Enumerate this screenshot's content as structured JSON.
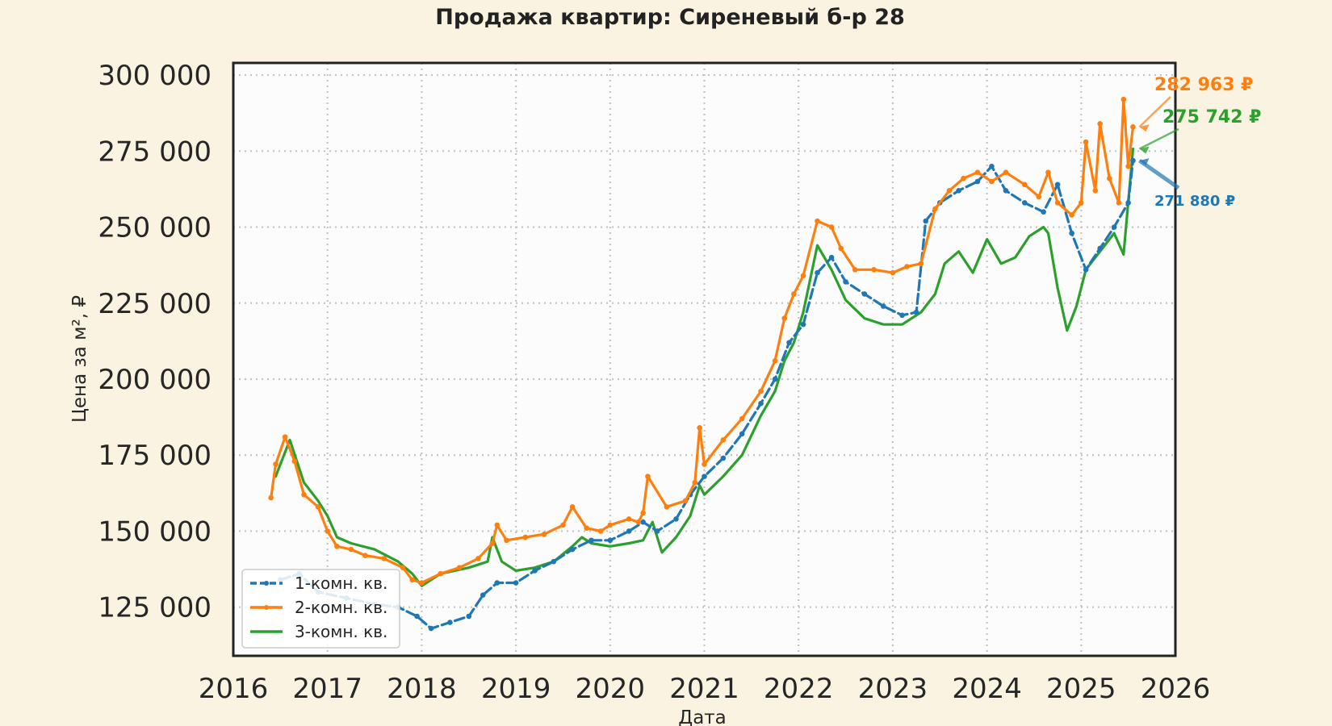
{
  "chart_data": {
    "type": "line",
    "title": "Продажа квартир: Сиреневый б-р 28",
    "xlabel": "Дата",
    "ylabel": "Цена за м², ₽",
    "xlim": [
      2016,
      2026
    ],
    "ylim": [
      109000,
      304000
    ],
    "x_ticks": [
      "2016",
      "2017",
      "2018",
      "2019",
      "2020",
      "2021",
      "2022",
      "2023",
      "2024",
      "2025",
      "2026"
    ],
    "y_ticks": [
      "125 000",
      "150 000",
      "175 000",
      "200 000",
      "225 000",
      "250 000",
      "275 000",
      "300 000"
    ],
    "grid": true,
    "legend_position": "lower-left",
    "series": [
      {
        "name": "1-комн. кв.",
        "color": "#1f77b4",
        "style": "dashed-markers",
        "x": [
          2016.5,
          2016.7,
          2016.9,
          2017.2,
          2017.5,
          2017.75,
          2017.95,
          2018.1,
          2018.3,
          2018.5,
          2018.65,
          2018.8,
          2019.0,
          2019.2,
          2019.4,
          2019.6,
          2019.8,
          2020.0,
          2020.2,
          2020.35,
          2020.5,
          2020.7,
          2020.85,
          2021.0,
          2021.2,
          2021.4,
          2021.6,
          2021.75,
          2021.9,
          2022.05,
          2022.2,
          2022.35,
          2022.5,
          2022.7,
          2022.9,
          2023.1,
          2023.25,
          2023.35,
          2023.5,
          2023.7,
          2023.9,
          2024.05,
          2024.2,
          2024.4,
          2024.6,
          2024.75,
          2024.9,
          2025.05,
          2025.2,
          2025.35,
          2025.5,
          2025.55
        ],
        "y": [
          134000,
          136000,
          130000,
          128000,
          126000,
          125000,
          122000,
          118000,
          120000,
          122000,
          129000,
          133000,
          133000,
          137000,
          140000,
          144000,
          147000,
          147000,
          150000,
          153000,
          150000,
          154000,
          162000,
          168000,
          174000,
          182000,
          192000,
          200000,
          212000,
          218000,
          235000,
          240000,
          232000,
          228000,
          224000,
          221000,
          222000,
          252000,
          258000,
          262000,
          265000,
          270000,
          262000,
          258000,
          255000,
          264000,
          248000,
          236000,
          243000,
          250000,
          258000,
          271880
        ]
      },
      {
        "name": "2-комн. кв.",
        "color": "#ff7f0e",
        "style": "solid-markers",
        "x": [
          2016.4,
          2016.45,
          2016.55,
          2016.65,
          2016.75,
          2016.9,
          2017.0,
          2017.1,
          2017.25,
          2017.4,
          2017.6,
          2017.8,
          2017.9,
          2018.0,
          2018.2,
          2018.4,
          2018.6,
          2018.75,
          2018.8,
          2018.9,
          2019.1,
          2019.3,
          2019.5,
          2019.6,
          2019.75,
          2019.9,
          2020.0,
          2020.2,
          2020.3,
          2020.35,
          2020.4,
          2020.6,
          2020.8,
          2020.9,
          2020.95,
          2021.0,
          2021.2,
          2021.4,
          2021.6,
          2021.75,
          2021.85,
          2021.95,
          2022.05,
          2022.2,
          2022.35,
          2022.45,
          2022.6,
          2022.8,
          2023.0,
          2023.15,
          2023.3,
          2023.45,
          2023.6,
          2023.75,
          2023.9,
          2024.05,
          2024.2,
          2024.4,
          2024.55,
          2024.65,
          2024.75,
          2024.9,
          2025.0,
          2025.05,
          2025.15,
          2025.2,
          2025.3,
          2025.4,
          2025.45,
          2025.5,
          2025.55
        ],
        "y": [
          161000,
          172000,
          181000,
          173000,
          162000,
          158000,
          150000,
          145000,
          144000,
          142000,
          141000,
          138000,
          134000,
          133000,
          136000,
          138000,
          141000,
          146000,
          152000,
          147000,
          148000,
          149000,
          152000,
          158000,
          151000,
          150000,
          152000,
          154000,
          153000,
          156000,
          168000,
          158000,
          160000,
          166000,
          184000,
          172000,
          180000,
          187000,
          196000,
          206000,
          220000,
          228000,
          234000,
          252000,
          250000,
          243000,
          236000,
          236000,
          235000,
          237000,
          238000,
          256000,
          262000,
          266000,
          268000,
          265000,
          268000,
          264000,
          260000,
          268000,
          258000,
          254000,
          258000,
          278000,
          262000,
          284000,
          266000,
          258000,
          292000,
          270000,
          282963
        ]
      },
      {
        "name": "3-комн. кв.",
        "color": "#2ca02c",
        "style": "solid",
        "x": [
          2016.45,
          2016.6,
          2016.75,
          2016.9,
          2017.0,
          2017.1,
          2017.25,
          2017.5,
          2017.75,
          2017.9,
          2018.0,
          2018.2,
          2018.5,
          2018.7,
          2018.75,
          2018.85,
          2019.0,
          2019.2,
          2019.4,
          2019.6,
          2019.7,
          2019.8,
          2020.0,
          2020.2,
          2020.35,
          2020.45,
          2020.55,
          2020.7,
          2020.85,
          2020.95,
          2021.0,
          2021.2,
          2021.4,
          2021.6,
          2021.75,
          2021.85,
          2021.95,
          2022.05,
          2022.2,
          2022.35,
          2022.5,
          2022.7,
          2022.9,
          2023.1,
          2023.3,
          2023.45,
          2023.55,
          2023.7,
          2023.85,
          2024.0,
          2024.15,
          2024.3,
          2024.45,
          2024.6,
          2024.65,
          2024.75,
          2024.85,
          2024.95,
          2025.05,
          2025.15,
          2025.25,
          2025.35,
          2025.45,
          2025.55
        ],
        "y": [
          168000,
          180000,
          166000,
          160000,
          155000,
          148000,
          146000,
          144000,
          140000,
          136000,
          132000,
          136000,
          138000,
          140000,
          148000,
          140000,
          137000,
          138000,
          140000,
          145000,
          148000,
          146000,
          145000,
          146000,
          147000,
          153000,
          143000,
          148000,
          155000,
          165000,
          162000,
          168000,
          175000,
          188000,
          196000,
          206000,
          212000,
          222000,
          244000,
          236000,
          226000,
          220000,
          218000,
          218000,
          222000,
          228000,
          238000,
          242000,
          235000,
          246000,
          238000,
          240000,
          247000,
          250000,
          248000,
          230000,
          216000,
          224000,
          236000,
          240000,
          244000,
          248000,
          241000,
          275742
        ]
      }
    ],
    "annotations": [
      {
        "text": "282 963 ₽",
        "color": "#ff7f0e",
        "x": 2025.55,
        "y": 282963
      },
      {
        "text": "275 742 ₽",
        "color": "#2ca02c",
        "x": 2025.55,
        "y": 275742
      },
      {
        "text": "271 880 ₽",
        "color": "#1f77b4",
        "x": 2025.55,
        "y": 271880
      }
    ]
  }
}
